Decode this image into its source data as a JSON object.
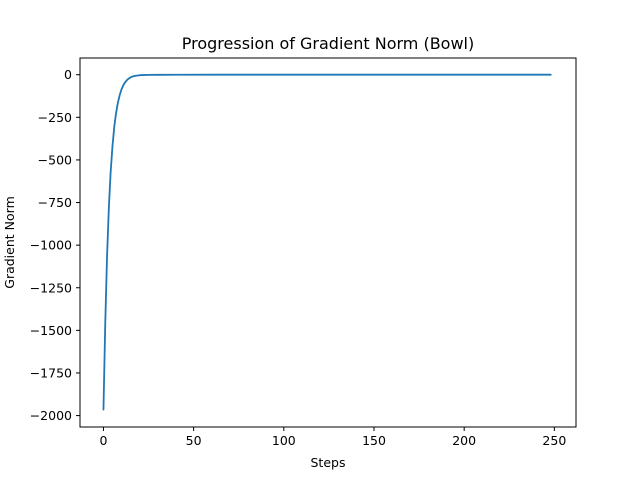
{
  "chart_data": {
    "type": "line",
    "title": "Progression of Gradient Norm (Bowl)",
    "xlabel": "Steps",
    "ylabel": "Gradient Norm",
    "xlim": [
      -13,
      262
    ],
    "ylim": [
      -2067,
      98
    ],
    "xticks": [
      0,
      50,
      100,
      150,
      200,
      250
    ],
    "yticks": [
      0,
      -250,
      -500,
      -750,
      -1000,
      -1250,
      -1500,
      -1750,
      -2000
    ],
    "ytick_labels": [
      "0",
      "−250",
      "−500",
      "−750",
      "−1000",
      "−1250",
      "−1500",
      "−1750",
      "−2000"
    ],
    "grid": false,
    "series": [
      {
        "color": "#1f77b4",
        "x": [
          0,
          1,
          2,
          3,
          4,
          5,
          6,
          7,
          8,
          9,
          10,
          11,
          12,
          13,
          14,
          15,
          16,
          17,
          18,
          20,
          22,
          25,
          30,
          40,
          60,
          100,
          150,
          200,
          248
        ],
        "y": [
          -1965,
          -1460,
          -1065,
          -780,
          -570,
          -420,
          -305,
          -225,
          -165,
          -120,
          -87,
          -62,
          -45,
          -32,
          -23,
          -16,
          -11,
          -8,
          -6,
          -3,
          -2,
          -1,
          -0.5,
          -0.2,
          0,
          0,
          0,
          0,
          0
        ]
      }
    ]
  }
}
